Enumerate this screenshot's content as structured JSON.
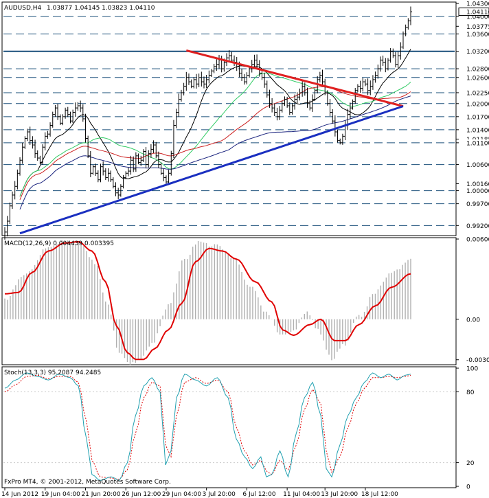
{
  "header": {
    "symbol": "AUDUSD,H4",
    "ohlc": "1.03877 1.04145 1.03823 1.04110"
  },
  "footer": {
    "copyright": "FxPro MT4, © 2001-2012, MetaQuotes Software Corp."
  },
  "colors": {
    "background": "#ffffff",
    "frame": "#000000",
    "price_bars": "#000000",
    "level_lines": "#1a4f7a",
    "resistance_line": "#e02020",
    "support_line": "#1a2fc0",
    "ma_fast": "#000000",
    "ma_green": "#33cc66",
    "ma_red": "#cc2222",
    "ma_navy": "#1a237e",
    "macd_histogram": "#b0b0b0",
    "macd_signal": "#e00000",
    "stoch_main": "#20a0b0",
    "stoch_signal": "#e00000"
  },
  "chart_data": [
    {
      "type": "candlestick",
      "panel": "price",
      "symbol": "AUDUSD",
      "timeframe": "H4",
      "ylim": [
        0.99,
        1.043
      ],
      "price_labels": [
        "1.04300",
        "1.04000",
        "1.03775",
        "1.03600",
        "1.03200",
        "1.02800",
        "1.02600",
        "1.02250",
        "1.02000",
        "1.01700",
        "1.01400",
        "1.01185",
        "1.01100",
        "1.00600",
        "1.00160",
        "1.00000",
        "0.99700",
        "0.99200"
      ],
      "current_price_label": "1.04110",
      "dashed_levels": [
        1.04,
        1.036,
        1.028,
        1.026,
        1.0225,
        1.02,
        1.017,
        1.014,
        1.011,
        1.006,
        1.0,
        0.997,
        0.992
      ],
      "solid_levels": [
        1.032
      ],
      "closes": [
        0.9905,
        0.993,
        0.9965,
        0.999,
        1.001,
        1.004,
        1.007,
        1.01,
        1.012,
        1.0135,
        1.0115,
        1.0105,
        1.0085,
        1.0075,
        1.0065,
        1.01,
        1.0125,
        1.013,
        1.015,
        1.0175,
        1.019,
        1.017,
        1.0155,
        1.017,
        1.0185,
        1.0175,
        1.016,
        1.018,
        1.019,
        1.0195,
        1.019,
        1.0165,
        1.012,
        1.008,
        1.004,
        1.0055,
        1.004,
        1.0025,
        1.0055,
        1.0045,
        1.003,
        1.004,
        1.0025,
        1.001,
        0.9995,
        0.999,
        1.001,
        1.003,
        1.004,
        1.0045,
        1.007,
        1.005,
        1.008,
        1.0065,
        1.007,
        1.009,
        1.006,
        1.0085,
        1.0095,
        1.0105,
        1.008,
        1.006,
        1.004,
        1.003,
        1.002,
        1.004,
        1.0085,
        1.015,
        1.018,
        1.021,
        1.0225,
        1.024,
        1.026,
        1.025,
        1.024,
        1.0255,
        1.0245,
        1.026,
        1.025,
        1.0245,
        1.0255,
        1.0265,
        1.0275,
        1.0285,
        1.029,
        1.03,
        1.028,
        1.0295,
        1.0305,
        1.031,
        1.03,
        1.0295,
        1.0285,
        1.027,
        1.026,
        1.025,
        1.0265,
        1.028,
        1.029,
        1.03,
        1.029,
        1.027,
        1.026,
        1.0245,
        1.022,
        1.02,
        1.019,
        1.018,
        1.017,
        1.0185,
        1.02,
        1.021,
        1.0195,
        1.018,
        1.0195,
        1.021,
        1.0215,
        1.0225,
        1.024,
        1.0225,
        1.02,
        1.019,
        1.021,
        1.023,
        1.0255,
        1.0265,
        1.025,
        1.0225,
        1.02,
        1.018,
        1.016,
        1.0135,
        1.0115,
        1.011,
        1.0125,
        1.015,
        1.0175,
        1.019,
        1.0205,
        1.023,
        1.024,
        1.0235,
        1.025,
        1.0245,
        1.023,
        1.024,
        1.0255,
        1.0265,
        1.028,
        1.03,
        1.0295,
        1.028,
        1.03,
        1.032,
        1.031,
        1.029,
        1.031,
        1.033,
        1.036,
        1.0375,
        1.039,
        1.0411
      ],
      "overlays": {
        "resistance_line": {
          "from": {
            "bar": 72,
            "price": 1.0322
          },
          "to": {
            "bar": 158,
            "price": 1.0194
          }
        },
        "support_line": {
          "from": {
            "bar": 6,
            "price": 0.9902
          },
          "to": {
            "bar": 158,
            "price": 1.0194
          }
        }
      },
      "x_tick_labels": [
        "14 Jun 2012",
        "19 Jun 04:00",
        "21 Jun 20:00",
        "26 Jun 12:00",
        "29 Jun 04:00",
        "3 Jul 20:00",
        "6 Jul 12:00",
        "11 Jul 04:00",
        "13 Jul 20:00",
        "18 Jul 12:00"
      ],
      "x_tick_bars": [
        0,
        16,
        32,
        48,
        64,
        80,
        96,
        112,
        127,
        143
      ]
    },
    {
      "type": "histogram+line",
      "panel": "macd",
      "title": "MACD(12,26,9) 0.004439 0.003395",
      "ylim": [
        -0.0033,
        0.006
      ],
      "y_tick_labels": [
        "0.00600",
        "0.00",
        "-0.00303"
      ],
      "y_tick_values": [
        0.006,
        0.0,
        -0.00303
      ],
      "signal_keypoints": [
        [
          0,
          0.0019
        ],
        [
          5,
          0.002
        ],
        [
          10,
          0.0035
        ],
        [
          16,
          0.0051
        ],
        [
          22,
          0.0057
        ],
        [
          27,
          0.0058
        ],
        [
          32,
          0.0051
        ],
        [
          37,
          0.0028
        ],
        [
          41,
          -0.0005
        ],
        [
          45,
          -0.0025
        ],
        [
          48,
          -0.003
        ],
        [
          51,
          -0.003
        ],
        [
          55,
          -0.0022
        ],
        [
          60,
          -0.0008
        ],
        [
          65,
          0.0012
        ],
        [
          70,
          0.0043
        ],
        [
          75,
          0.0053
        ],
        [
          80,
          0.0051
        ],
        [
          85,
          0.0045
        ],
        [
          92,
          0.0028
        ],
        [
          98,
          0.0013
        ],
        [
          102,
          -0.0008
        ],
        [
          106,
          -0.0012
        ],
        [
          112,
          -0.0004
        ],
        [
          116,
          0.0
        ],
        [
          121,
          -0.0016
        ],
        [
          125,
          -0.0016
        ],
        [
          130,
          -0.0004
        ],
        [
          136,
          0.001
        ],
        [
          142,
          0.0024
        ],
        [
          149,
          0.0034
        ]
      ],
      "histogram_keypoints": [
        [
          0,
          0.0015
        ],
        [
          8,
          0.0035
        ],
        [
          16,
          0.0055
        ],
        [
          22,
          0.0058
        ],
        [
          28,
          0.0057
        ],
        [
          33,
          0.0042
        ],
        [
          38,
          0.001
        ],
        [
          42,
          -0.0025
        ],
        [
          46,
          -0.0033
        ],
        [
          50,
          -0.003
        ],
        [
          54,
          -0.0018
        ],
        [
          60,
          0.001
        ],
        [
          66,
          0.0045
        ],
        [
          71,
          0.0057
        ],
        [
          78,
          0.0055
        ],
        [
          84,
          0.0045
        ],
        [
          90,
          0.0025
        ],
        [
          96,
          0.0005
        ],
        [
          101,
          -0.0012
        ],
        [
          106,
          -0.0008
        ],
        [
          111,
          0.0005
        ],
        [
          115,
          -0.0008
        ],
        [
          120,
          -0.003
        ],
        [
          124,
          -0.002
        ],
        [
          130,
          0.0002
        ],
        [
          136,
          0.002
        ],
        [
          142,
          0.0035
        ],
        [
          149,
          0.0045
        ]
      ]
    },
    {
      "type": "line",
      "panel": "stochastic",
      "title": "Stoch(13,3,3) 95.2087 94.2485",
      "ylim": [
        0,
        100
      ],
      "y_tick_labels": [
        "100",
        "80",
        "20",
        "0"
      ],
      "y_tick_values": [
        100,
        80,
        20,
        0
      ],
      "main_keypoints": [
        [
          0,
          83
        ],
        [
          4,
          90
        ],
        [
          8,
          96
        ],
        [
          12,
          93
        ],
        [
          16,
          90
        ],
        [
          20,
          95
        ],
        [
          24,
          92
        ],
        [
          27,
          85
        ],
        [
          30,
          40
        ],
        [
          32,
          10
        ],
        [
          35,
          5
        ],
        [
          39,
          8
        ],
        [
          42,
          5
        ],
        [
          45,
          20
        ],
        [
          48,
          60
        ],
        [
          51,
          85
        ],
        [
          54,
          92
        ],
        [
          57,
          80
        ],
        [
          59,
          18
        ],
        [
          61,
          30
        ],
        [
          63,
          75
        ],
        [
          66,
          95
        ],
        [
          70,
          90
        ],
        [
          74,
          85
        ],
        [
          78,
          92
        ],
        [
          82,
          75
        ],
        [
          85,
          40
        ],
        [
          88,
          25
        ],
        [
          91,
          15
        ],
        [
          94,
          25
        ],
        [
          96,
          8
        ],
        [
          98,
          10
        ],
        [
          101,
          30
        ],
        [
          104,
          8
        ],
        [
          107,
          45
        ],
        [
          110,
          75
        ],
        [
          113,
          88
        ],
        [
          116,
          60
        ],
        [
          118,
          15
        ],
        [
          120,
          8
        ],
        [
          123,
          35
        ],
        [
          126,
          60
        ],
        [
          129,
          75
        ],
        [
          132,
          88
        ],
        [
          135,
          96
        ],
        [
          138,
          92
        ],
        [
          141,
          95
        ],
        [
          144,
          90
        ],
        [
          147,
          94
        ],
        [
          149,
          95
        ]
      ],
      "signal_keypoints": [
        [
          0,
          80
        ],
        [
          4,
          86
        ],
        [
          8,
          93
        ],
        [
          12,
          94
        ],
        [
          16,
          91
        ],
        [
          20,
          93
        ],
        [
          24,
          93
        ],
        [
          27,
          88
        ],
        [
          30,
          55
        ],
        [
          32,
          22
        ],
        [
          35,
          8
        ],
        [
          39,
          7
        ],
        [
          42,
          6
        ],
        [
          45,
          14
        ],
        [
          48,
          45
        ],
        [
          51,
          75
        ],
        [
          54,
          88
        ],
        [
          57,
          85
        ],
        [
          59,
          35
        ],
        [
          61,
          25
        ],
        [
          63,
          60
        ],
        [
          66,
          88
        ],
        [
          70,
          92
        ],
        [
          74,
          87
        ],
        [
          78,
          90
        ],
        [
          82,
          80
        ],
        [
          85,
          50
        ],
        [
          88,
          30
        ],
        [
          91,
          18
        ],
        [
          94,
          22
        ],
        [
          96,
          13
        ],
        [
          98,
          10
        ],
        [
          101,
          22
        ],
        [
          104,
          14
        ],
        [
          107,
          35
        ],
        [
          110,
          65
        ],
        [
          113,
          82
        ],
        [
          116,
          70
        ],
        [
          118,
          30
        ],
        [
          120,
          12
        ],
        [
          123,
          25
        ],
        [
          126,
          50
        ],
        [
          129,
          70
        ],
        [
          132,
          83
        ],
        [
          135,
          92
        ],
        [
          138,
          92
        ],
        [
          141,
          93
        ],
        [
          144,
          92
        ],
        [
          147,
          93
        ],
        [
          149,
          94
        ]
      ]
    }
  ]
}
